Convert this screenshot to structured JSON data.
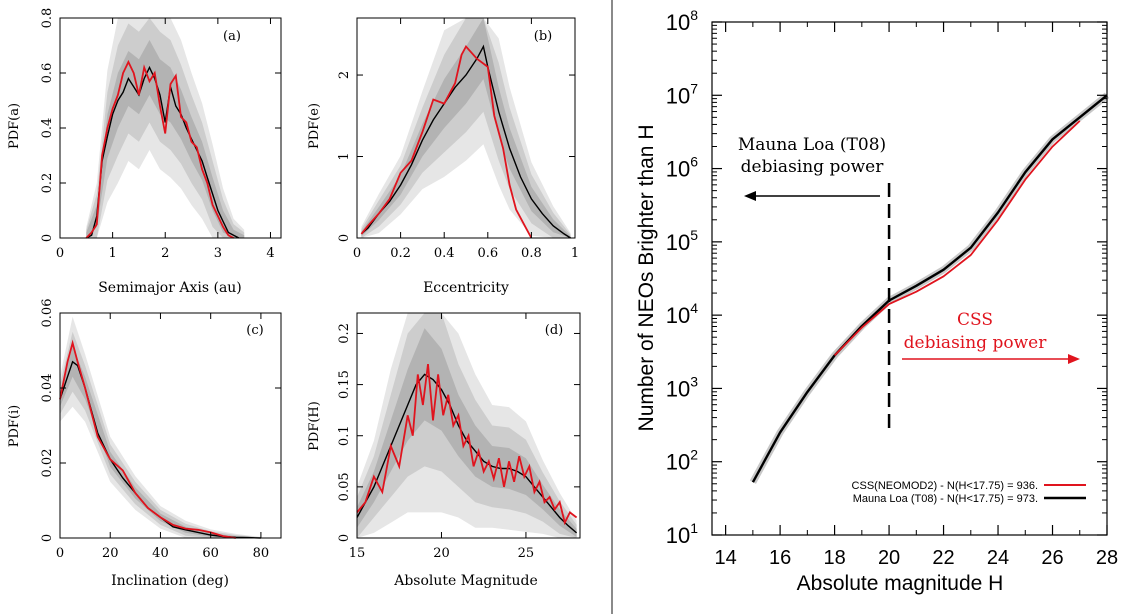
{
  "colors": {
    "red": "#e0141e",
    "black": "#000000",
    "band_outer": "#e6e6e6",
    "band_mid": "#cdcdcd",
    "band_inner": "#b3b3b3",
    "divider": "#8a8a8a"
  },
  "chart_data": [
    {
      "type": "line",
      "panel_label": "(a)",
      "xlabel": "Semimajor Axis (au)",
      "ylabel": "PDF(a)",
      "xlim": [
        0,
        4.2
      ],
      "ylim": [
        0,
        0.8
      ],
      "xticks": [
        0,
        1,
        2,
        3,
        4
      ],
      "yticks": [
        0,
        0.2,
        0.4,
        0.6,
        0.8
      ],
      "series": [
        {
          "color_key": "black",
          "x": [
            0.5,
            0.6,
            0.7,
            0.8,
            0.9,
            1.0,
            1.1,
            1.2,
            1.3,
            1.4,
            1.5,
            1.6,
            1.7,
            1.8,
            1.9,
            2.0,
            2.1,
            2.2,
            2.3,
            2.4,
            2.5,
            2.6,
            2.7,
            2.8,
            2.9,
            3.0,
            3.1,
            3.2,
            3.3,
            3.4
          ],
          "y": [
            0,
            0.01,
            0.08,
            0.28,
            0.37,
            0.45,
            0.5,
            0.53,
            0.58,
            0.55,
            0.52,
            0.58,
            0.62,
            0.58,
            0.52,
            0.42,
            0.55,
            0.48,
            0.45,
            0.4,
            0.36,
            0.32,
            0.28,
            0.22,
            0.16,
            0.1,
            0.06,
            0.02,
            0.01,
            0
          ]
        },
        {
          "color_key": "red",
          "x": [
            0.5,
            0.6,
            0.7,
            0.8,
            0.9,
            1.0,
            1.1,
            1.2,
            1.3,
            1.4,
            1.5,
            1.6,
            1.7,
            1.8,
            1.9,
            2.0,
            2.1,
            2.2,
            2.3,
            2.4,
            2.5,
            2.6,
            2.7,
            2.8,
            2.9,
            3.0,
            3.1,
            3.2,
            3.3
          ],
          "y": [
            0,
            0.02,
            0.05,
            0.3,
            0.4,
            0.47,
            0.52,
            0.6,
            0.64,
            0.6,
            0.52,
            0.62,
            0.57,
            0.6,
            0.48,
            0.38,
            0.56,
            0.59,
            0.44,
            0.42,
            0.35,
            0.33,
            0.25,
            0.2,
            0.12,
            0.08,
            0.04,
            0.01,
            0
          ]
        }
      ],
      "band": {
        "x": [
          0.5,
          0.7,
          0.9,
          1.1,
          1.3,
          1.5,
          1.7,
          1.9,
          2.1,
          2.3,
          2.5,
          2.7,
          2.9,
          3.1,
          3.3,
          3.5
        ],
        "y": [
          0.01,
          0.08,
          0.37,
          0.5,
          0.58,
          0.55,
          0.62,
          0.55,
          0.52,
          0.45,
          0.36,
          0.28,
          0.16,
          0.06,
          0.01,
          0
        ],
        "spread": [
          0.01,
          0.04,
          0.08,
          0.1,
          0.1,
          0.1,
          0.1,
          0.1,
          0.1,
          0.09,
          0.08,
          0.07,
          0.06,
          0.04,
          0.02,
          0.01
        ]
      }
    },
    {
      "type": "line",
      "panel_label": "(b)",
      "xlabel": "Eccentricity",
      "ylabel": "PDF(e)",
      "xlim": [
        0,
        1
      ],
      "ylim": [
        0,
        2.7
      ],
      "xticks": [
        0,
        0.2,
        0.4,
        0.6,
        0.8,
        1
      ],
      "yticks": [
        0,
        1,
        2
      ],
      "series": [
        {
          "color_key": "black",
          "x": [
            0.02,
            0.05,
            0.1,
            0.15,
            0.2,
            0.25,
            0.3,
            0.35,
            0.4,
            0.45,
            0.5,
            0.55,
            0.58,
            0.6,
            0.65,
            0.7,
            0.75,
            0.8,
            0.85,
            0.9,
            0.95,
            0.98
          ],
          "y": [
            0.05,
            0.12,
            0.3,
            0.45,
            0.65,
            0.9,
            1.2,
            1.45,
            1.65,
            1.85,
            2.0,
            2.2,
            2.35,
            2.1,
            1.55,
            1.1,
            0.75,
            0.48,
            0.3,
            0.15,
            0.05,
            0
          ]
        },
        {
          "color_key": "red",
          "x": [
            0.02,
            0.05,
            0.1,
            0.15,
            0.2,
            0.25,
            0.3,
            0.35,
            0.4,
            0.45,
            0.48,
            0.5,
            0.55,
            0.6,
            0.63,
            0.67,
            0.7,
            0.73,
            0.78,
            0.8
          ],
          "y": [
            0.05,
            0.15,
            0.3,
            0.48,
            0.8,
            0.95,
            1.3,
            1.7,
            1.65,
            1.9,
            2.25,
            2.35,
            2.2,
            2.1,
            1.5,
            1.1,
            0.65,
            0.35,
            0.1,
            0
          ]
        }
      ],
      "band": {
        "x": [
          0.02,
          0.1,
          0.2,
          0.3,
          0.4,
          0.5,
          0.58,
          0.65,
          0.7,
          0.8,
          0.9,
          0.98
        ],
        "y": [
          0.05,
          0.3,
          0.65,
          1.2,
          1.65,
          2.0,
          2.35,
          1.55,
          1.1,
          0.48,
          0.15,
          0
        ],
        "spread": [
          0.03,
          0.08,
          0.12,
          0.2,
          0.3,
          0.35,
          0.4,
          0.3,
          0.25,
          0.15,
          0.08,
          0.02
        ]
      }
    },
    {
      "type": "line",
      "panel_label": "(c)",
      "xlabel": "Inclination (deg)",
      "ylabel": "PDF(i)",
      "xlim": [
        0,
        88
      ],
      "ylim": [
        0,
        0.06
      ],
      "xticks": [
        0,
        20,
        40,
        60,
        80
      ],
      "yticks": [
        0,
        0.02,
        0.04,
        0.06
      ],
      "series": [
        {
          "color_key": "black",
          "x": [
            0,
            3,
            5,
            7,
            10,
            15,
            20,
            25,
            30,
            35,
            40,
            45,
            50,
            55,
            60,
            65,
            70,
            75,
            80
          ],
          "y": [
            0.037,
            0.043,
            0.047,
            0.046,
            0.04,
            0.028,
            0.021,
            0.016,
            0.012,
            0.008,
            0.0055,
            0.003,
            0.0022,
            0.0015,
            0.0008,
            0.0004,
            0.0002,
            0.0001,
            0
          ]
        },
        {
          "color_key": "red",
          "x": [
            0,
            3,
            5,
            7,
            10,
            15,
            20,
            25,
            30,
            35,
            40,
            45,
            50,
            55,
            60,
            65,
            70
          ],
          "y": [
            0.037,
            0.047,
            0.052,
            0.047,
            0.04,
            0.027,
            0.021,
            0.018,
            0.012,
            0.008,
            0.0055,
            0.0035,
            0.0025,
            0.0022,
            0.0015,
            0.0005,
            0
          ]
        }
      ],
      "band": {
        "x": [
          0,
          5,
          10,
          20,
          30,
          40,
          50,
          60,
          70,
          80
        ],
        "y": [
          0.037,
          0.047,
          0.04,
          0.021,
          0.012,
          0.0055,
          0.0022,
          0.0008,
          0.0002,
          0
        ],
        "spread": [
          0.002,
          0.004,
          0.003,
          0.002,
          0.0015,
          0.001,
          0.0008,
          0.0005,
          0.0003,
          0.0001
        ]
      }
    },
    {
      "type": "line",
      "panel_label": "(d)",
      "xlabel": "Absolute Magnitude",
      "ylabel": "PDF(H)",
      "xlim": [
        15,
        28.2
      ],
      "ylim": [
        0,
        0.22
      ],
      "xticks": [
        15,
        20,
        25
      ],
      "yticks": [
        0,
        0.05,
        0.1,
        0.15,
        0.2
      ],
      "series": [
        {
          "color_key": "black",
          "x": [
            15,
            16,
            17,
            18,
            18.5,
            19,
            19.5,
            20,
            20.5,
            21,
            21.5,
            22,
            22.5,
            23,
            23.5,
            24,
            24.5,
            25,
            25.5,
            26,
            26.5,
            27,
            27.5,
            28
          ],
          "y": [
            0.02,
            0.05,
            0.09,
            0.13,
            0.15,
            0.16,
            0.155,
            0.145,
            0.13,
            0.11,
            0.095,
            0.085,
            0.075,
            0.07,
            0.068,
            0.068,
            0.065,
            0.06,
            0.05,
            0.04,
            0.03,
            0.02,
            0.012,
            0.005
          ]
        },
        {
          "color_key": "red",
          "x": [
            15,
            15.5,
            16,
            16.5,
            17,
            17.5,
            18,
            18.3,
            18.6,
            18.9,
            19.2,
            19.5,
            19.8,
            20.1,
            20.4,
            20.7,
            21,
            21.3,
            21.6,
            21.9,
            22.2,
            22.5,
            22.8,
            23.1,
            23.4,
            23.7,
            24,
            24.3,
            24.6,
            24.9,
            25.2,
            25.5,
            25.8,
            26.1,
            26.4,
            26.7,
            27,
            27.3,
            27.6,
            28
          ],
          "y": [
            0.025,
            0.035,
            0.06,
            0.045,
            0.09,
            0.07,
            0.12,
            0.1,
            0.16,
            0.13,
            0.17,
            0.115,
            0.16,
            0.12,
            0.14,
            0.11,
            0.12,
            0.09,
            0.1,
            0.07,
            0.085,
            0.065,
            0.075,
            0.058,
            0.078,
            0.05,
            0.075,
            0.055,
            0.08,
            0.06,
            0.07,
            0.045,
            0.055,
            0.035,
            0.04,
            0.028,
            0.035,
            0.015,
            0.025,
            0.02
          ]
        }
      ],
      "band": {
        "x": [
          15,
          16,
          17,
          18,
          19,
          20,
          21,
          22,
          23,
          24,
          25,
          26,
          27,
          28
        ],
        "y": [
          0.02,
          0.05,
          0.09,
          0.13,
          0.16,
          0.145,
          0.11,
          0.085,
          0.07,
          0.068,
          0.06,
          0.04,
          0.02,
          0.005
        ],
        "spread": [
          0.01,
          0.015,
          0.025,
          0.035,
          0.045,
          0.04,
          0.03,
          0.025,
          0.02,
          0.02,
          0.018,
          0.012,
          0.008,
          0.004
        ]
      }
    },
    {
      "type": "line",
      "xlabel": "Absolute magnitude H",
      "ylabel": "Number of NEOs Brighter than H",
      "xlim": [
        13.5,
        28
      ],
      "ylim_log10": [
        1,
        8
      ],
      "log_y": true,
      "xticks": [
        14,
        16,
        18,
        20,
        22,
        24,
        26,
        28
      ],
      "yticks_log10": [
        1,
        2,
        3,
        4,
        5,
        6,
        7,
        8
      ],
      "series": [
        {
          "name": "Mauna Loa (T08) - N(H<17.75) = 973.",
          "color_key": "black",
          "x": [
            15,
            16,
            17,
            18,
            19,
            20,
            21,
            22,
            23,
            24,
            25,
            26,
            27,
            28
          ],
          "log10_y": [
            1.72,
            2.4,
            2.95,
            3.45,
            3.85,
            4.2,
            4.4,
            4.62,
            4.92,
            5.4,
            5.95,
            6.4,
            6.7,
            7.0
          ]
        },
        {
          "name": "CSS(NEOMOD2) - N(H<17.75) = 936.",
          "color_key": "red",
          "x": [
            18,
            19,
            20,
            21,
            22,
            23,
            24,
            25,
            26,
            27
          ],
          "log10_y": [
            3.45,
            3.83,
            4.15,
            4.32,
            4.53,
            4.82,
            5.3,
            5.85,
            6.3,
            6.65
          ]
        }
      ],
      "annotations": {
        "mauna_loa_line1": "Mauna Loa (T08)",
        "mauna_loa_line2": "debiasing power",
        "css_line1": "CSS",
        "css_line2": "debiasing power"
      },
      "divider_x": 20,
      "legend_position": "bottom-right"
    }
  ]
}
